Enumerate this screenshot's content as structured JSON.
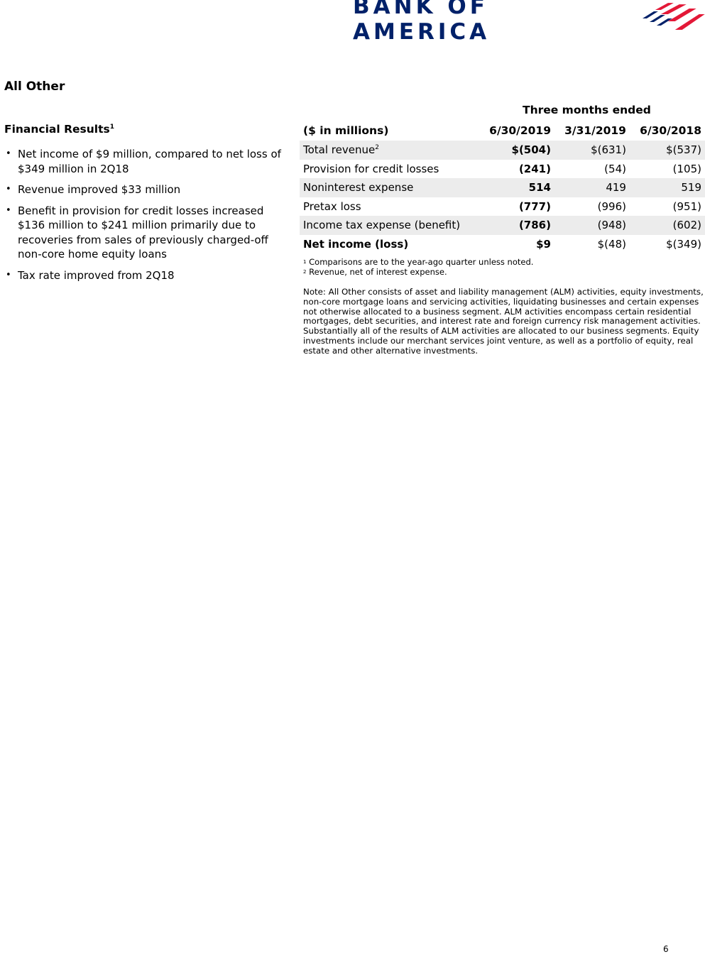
{
  "header": {
    "logo_text": "BANK OF AMERICA",
    "brand_colors": {
      "navy": "#012169",
      "red": "#e31837"
    }
  },
  "section_title": "All Other",
  "financial_results": {
    "title": "Financial Results",
    "title_sup": "1",
    "bullets": [
      "Net income of $9 million, compared to net loss of $349 million in 2Q18",
      "Revenue improved $33 million",
      "Benefit in provision for credit losses increased $136 million to $241 million primarily due to recoveries from sales of previously charged-off non-core home equity loans",
      "Tax rate improved from 2Q18"
    ]
  },
  "table": {
    "super_header": "Three months ended",
    "columns": [
      "($ in millions)",
      "6/30/2019",
      "3/31/2019",
      "6/30/2018"
    ],
    "rows": [
      {
        "label": "Total revenue",
        "sup": "2",
        "values": [
          "$(504)",
          "$(631)",
          "$(537)"
        ]
      },
      {
        "label": "Provision for credit losses",
        "sup": "",
        "values": [
          "(241)",
          "(54)",
          "(105)"
        ]
      },
      {
        "label": "Noninterest expense",
        "sup": "",
        "values": [
          "514",
          "419",
          "519"
        ]
      },
      {
        "label": "Pretax loss",
        "sup": "",
        "values": [
          "(777)",
          "(996)",
          "(951)"
        ]
      },
      {
        "label": "Income tax expense (benefit)",
        "sup": "",
        "values": [
          "(786)",
          "(948)",
          "(602)"
        ]
      },
      {
        "label": "Net income (loss)",
        "sup": "",
        "values": [
          "$9",
          "$(48)",
          "$(349)"
        ]
      }
    ]
  },
  "footnotes": [
    {
      "mark": "1",
      "text": "Comparisons are to the year-ago quarter unless noted."
    },
    {
      "mark": "2",
      "text": "Revenue, net of interest expense."
    }
  ],
  "note": "Note:  All Other consists of asset and liability management (ALM) activities, equity investments, non-core mortgage loans and servicing activities, liquidating businesses and certain expenses not otherwise allocated to a business segment. ALM activities encompass certain residential mortgages, debt securities, and interest rate and foreign currency risk management activities. Substantially all of the results of ALM activities are allocated to our business segments. Equity investments include our merchant services joint venture, as well as a portfolio of equity, real estate and other alternative investments.",
  "page_number": "6"
}
